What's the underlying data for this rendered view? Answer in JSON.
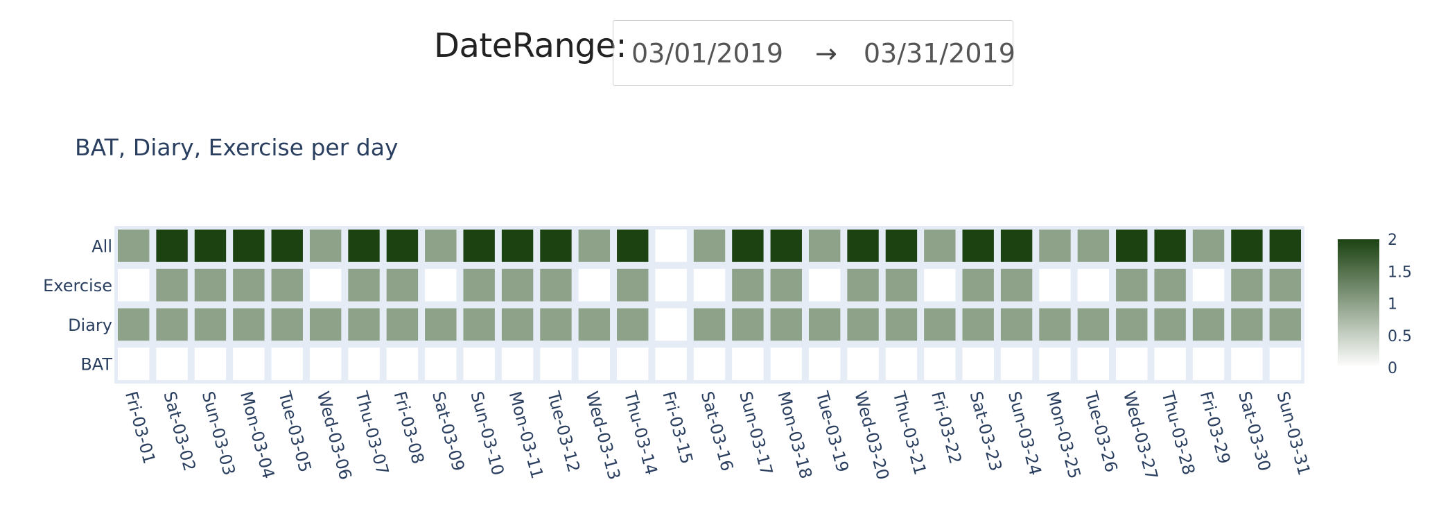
{
  "date_range": {
    "label": "DateRange:",
    "start": "03/01/2019",
    "arrow": "→",
    "end": "03/31/2019"
  },
  "chart_data": {
    "type": "heatmap",
    "title": "BAT, Diary, Exercise per day",
    "xlabel": "",
    "ylabel": "",
    "x": [
      "Fri-03-01",
      "Sat-03-02",
      "Sun-03-03",
      "Mon-03-04",
      "Tue-03-05",
      "Wed-03-06",
      "Thu-03-07",
      "Fri-03-08",
      "Sat-03-09",
      "Sun-03-10",
      "Mon-03-11",
      "Tue-03-12",
      "Wed-03-13",
      "Thu-03-14",
      "Fri-03-15",
      "Sat-03-16",
      "Sun-03-17",
      "Mon-03-18",
      "Tue-03-19",
      "Wed-03-20",
      "Thu-03-21",
      "Fri-03-22",
      "Sat-03-23",
      "Sun-03-24",
      "Mon-03-25",
      "Tue-03-26",
      "Wed-03-27",
      "Thu-03-28",
      "Fri-03-29",
      "Sat-03-30",
      "Sun-03-31"
    ],
    "y": [
      "BAT",
      "Diary",
      "Exercise",
      "All"
    ],
    "z": [
      [
        0,
        0,
        0,
        0,
        0,
        0,
        0,
        0,
        0,
        0,
        0,
        0,
        0,
        0,
        0,
        0,
        0,
        0,
        0,
        0,
        0,
        0,
        0,
        0,
        0,
        0,
        0,
        0,
        0,
        0,
        0
      ],
      [
        1,
        1,
        1,
        1,
        1,
        1,
        1,
        1,
        1,
        1,
        1,
        1,
        1,
        1,
        0,
        1,
        1,
        1,
        1,
        1,
        1,
        1,
        1,
        1,
        1,
        1,
        1,
        1,
        1,
        1,
        1
      ],
      [
        0,
        1,
        1,
        1,
        1,
        0,
        1,
        1,
        0,
        1,
        1,
        1,
        0,
        1,
        0,
        0,
        1,
        1,
        0,
        1,
        1,
        0,
        1,
        1,
        0,
        0,
        1,
        1,
        0,
        1,
        1
      ],
      [
        1,
        2,
        2,
        2,
        2,
        1,
        2,
        2,
        1,
        2,
        2,
        2,
        1,
        2,
        0,
        1,
        2,
        2,
        1,
        2,
        2,
        1,
        2,
        2,
        1,
        1,
        2,
        2,
        1,
        2,
        2
      ]
    ],
    "zrange": [
      0,
      2
    ],
    "colorscale": [
      "#ffffff",
      "#1c4212"
    ],
    "colorbar": {
      "tick_labels": [
        "0",
        "0.5",
        "1",
        "1.5",
        "2"
      ],
      "tick_values": [
        0,
        0.5,
        1,
        1.5,
        2
      ]
    },
    "grid_background": "#e5ecf6",
    "legend": "none"
  }
}
